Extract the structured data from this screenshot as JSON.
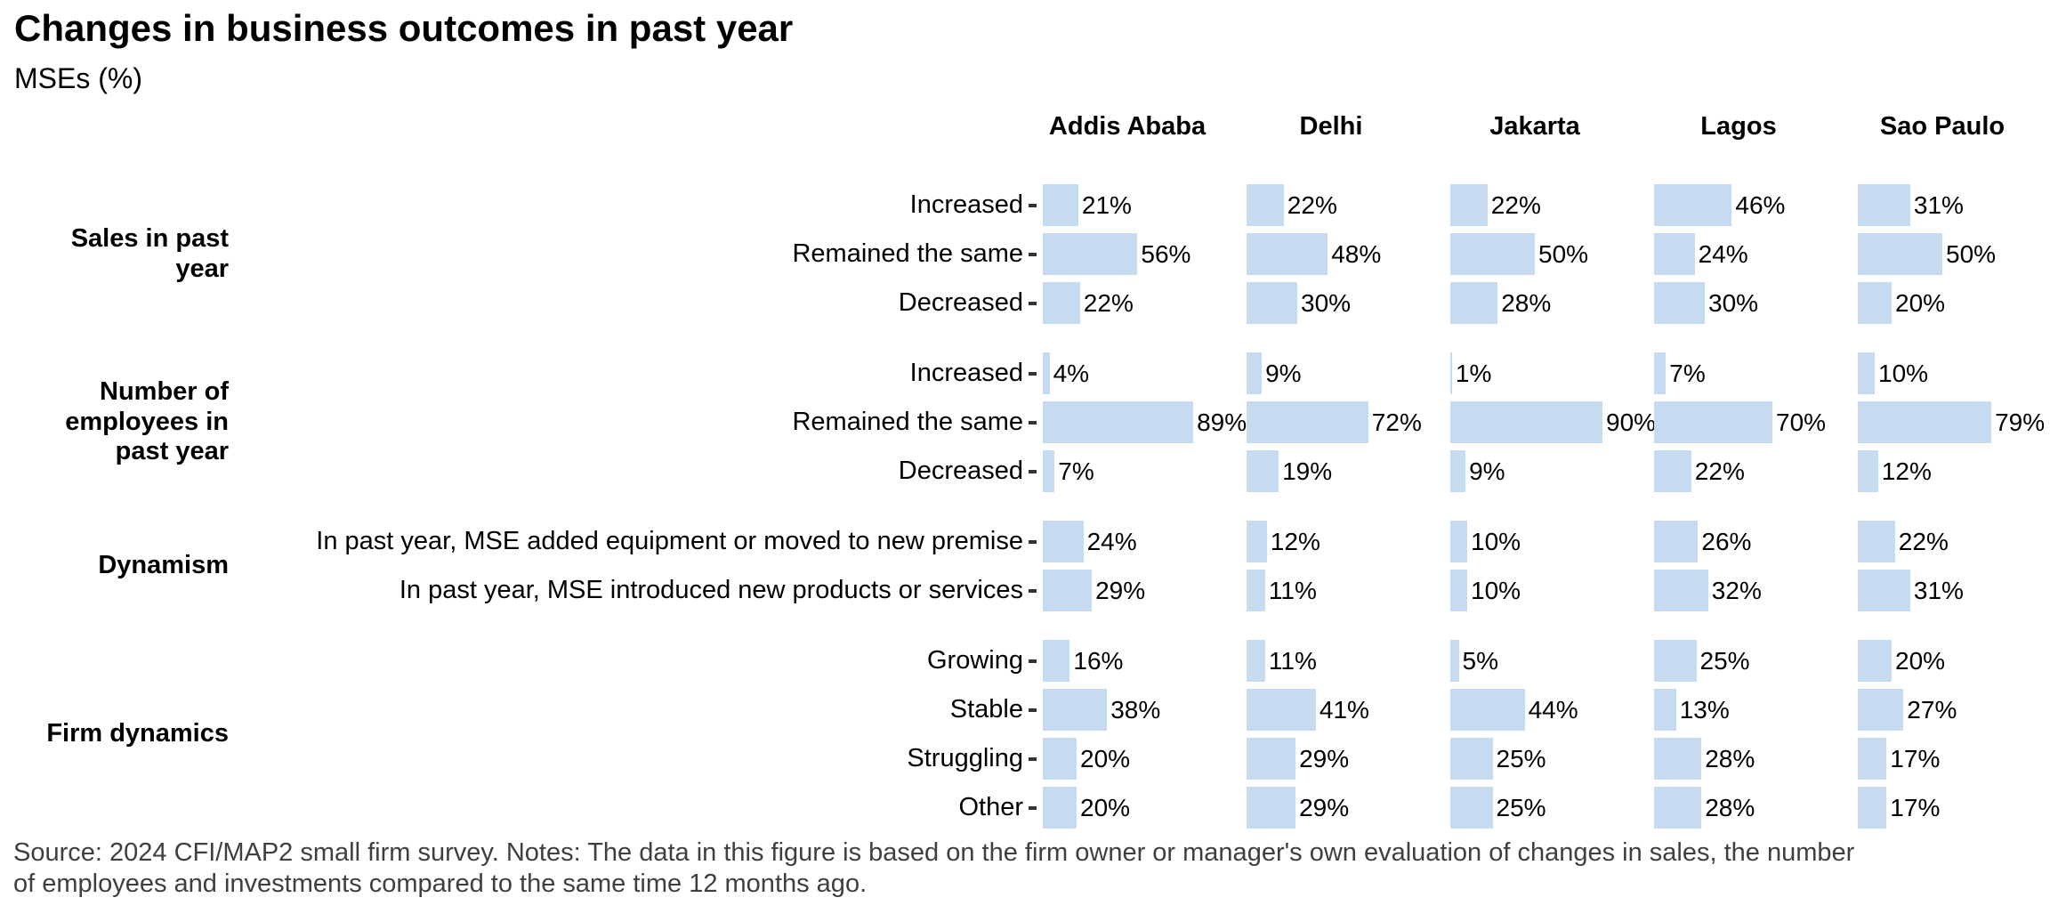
{
  "title": "Changes in business outcomes in past year",
  "subtitle": "MSEs (%)",
  "source_note": "Source: 2024 CFI/MAP2 small firm survey. Notes: The data in this figure is based on the firm owner or manager's own evaluation of changes in sales, the number of employees and investments compared to the same time 12 months ago.",
  "colors": {
    "bar": "#c6dbef",
    "axis_tick": "#333333",
    "source_text": "#3f3f3f",
    "text": "#000000"
  },
  "chart_data": {
    "type": "bar",
    "orientation": "horizontal",
    "unit": "%",
    "xlim": [
      0,
      100
    ],
    "grid": false,
    "value_labels": true,
    "columns": [
      "Addis Ababa",
      "Delhi",
      "Jakarta",
      "Lagos",
      "Sao Paulo"
    ],
    "groups": [
      {
        "label": "Sales in past year",
        "rows": [
          {
            "label": "Increased",
            "values": [
              21,
              22,
              22,
              46,
              31
            ]
          },
          {
            "label": "Remained the same",
            "values": [
              56,
              48,
              50,
              24,
              50
            ]
          },
          {
            "label": "Decreased",
            "values": [
              22,
              30,
              28,
              30,
              20
            ]
          }
        ]
      },
      {
        "label": "Number of employees in past year",
        "rows": [
          {
            "label": "Increased",
            "values": [
              4,
              9,
              1,
              7,
              10
            ]
          },
          {
            "label": "Remained the same",
            "values": [
              89,
              72,
              90,
              70,
              79
            ]
          },
          {
            "label": "Decreased",
            "values": [
              7,
              19,
              9,
              22,
              12
            ]
          }
        ]
      },
      {
        "label": "Dynamism",
        "rows": [
          {
            "label": "In past year, MSE added equipment or moved to new premise",
            "values": [
              24,
              12,
              10,
              26,
              22
            ]
          },
          {
            "label": "In past year, MSE introduced new products or services",
            "values": [
              29,
              11,
              10,
              32,
              31
            ]
          }
        ]
      },
      {
        "label": "Firm dynamics",
        "rows": [
          {
            "label": "Growing",
            "values": [
              16,
              11,
              5,
              25,
              20
            ]
          },
          {
            "label": "Stable",
            "values": [
              38,
              41,
              44,
              13,
              27
            ]
          },
          {
            "label": "Struggling",
            "values": [
              20,
              29,
              25,
              28,
              17
            ]
          },
          {
            "label": "Other",
            "values": [
              20,
              29,
              25,
              28,
              17
            ]
          }
        ]
      }
    ]
  }
}
